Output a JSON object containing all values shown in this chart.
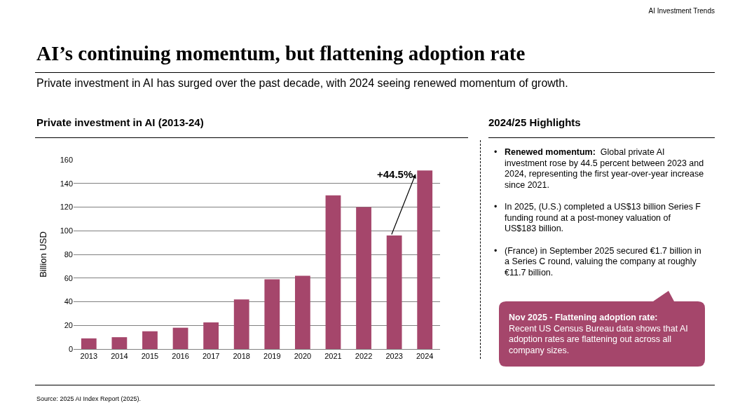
{
  "chart_data": {
    "type": "bar",
    "title": "AI’s continuing momentum, but flattening adoption rate",
    "subtitle": "Private investment in AI has surged over the past decade, with 2024 seeing renewed momentum of growth.",
    "ylabel": "Billion USD",
    "categories": [
      "2013",
      "2014",
      "2015",
      "2016",
      "2017",
      "2018",
      "2019",
      "2020",
      "2021",
      "2022",
      "2023",
      "2024"
    ],
    "values": [
      9,
      10,
      15,
      18,
      22.5,
      42,
      59,
      62,
      130,
      120,
      96,
      151
    ],
    "color": "#a5466b",
    "ylim": [
      0,
      160
    ],
    "yticks": [
      0,
      20,
      40,
      60,
      80,
      100,
      120,
      140,
      160
    ],
    "grid": "y",
    "annotations": [
      "AI Investment Trends",
      "Private investment in AI (2013-24)",
      {
        "text": "+44.5%",
        "x": "2024",
        "y": 148
      },
      "2024/25 Highlights",
      "Renewed momentum:",
      "Global private AI investment rose by 44.5 percent between 2023 and 2024, representing the first year-over-year increase since 2021.",
      "In 2025, (U.S.) completed a US$13 billion Series F funding round at a post-money valuation of US$183 billion.",
      "(France) in September 2025 secured €1.7 billion in a Series C round, valuing the company at roughly €11.7 billion.",
      "Nov 2025 - Flattening adoption rate:",
      "Recent US Census Bureau data shows that AI adoption rates are flattening out across all company sizes.",
      "Source: 2025 AI Index Report (2025).",
      "•"
    ]
  }
}
